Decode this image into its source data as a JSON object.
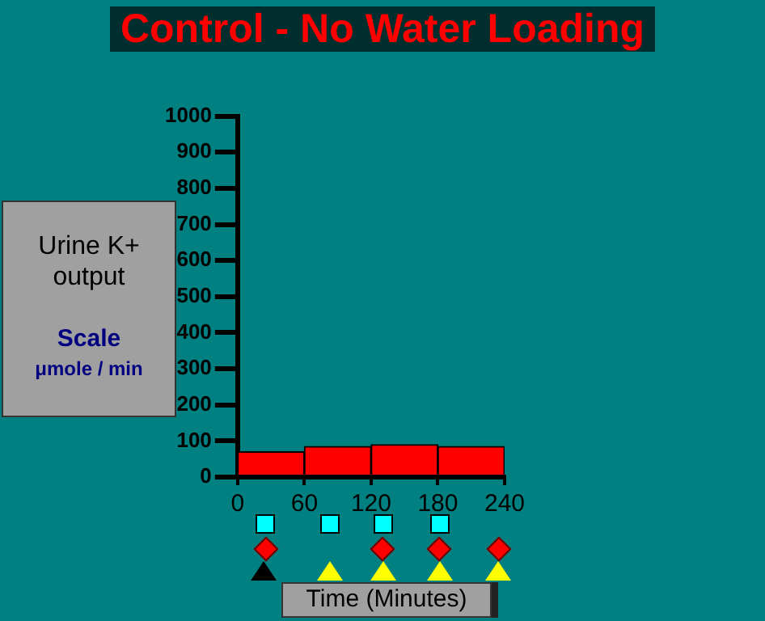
{
  "chart_data": {
    "type": "histogram",
    "title": "Control - No Water Loading",
    "xlabel": "Time (Minutes)",
    "ylabel": "Urine K+ output",
    "annotations": [
      "Scale",
      "μmole / min"
    ],
    "bins": [
      0,
      60,
      120,
      180,
      240
    ],
    "values": [
      70,
      85,
      90,
      85
    ],
    "color": "#ff0000",
    "xlim": [
      0,
      240
    ],
    "xticks": [
      0,
      60,
      120,
      180,
      240
    ],
    "ylim": [
      0,
      1000
    ],
    "yticks": [
      0,
      100,
      200,
      300,
      400,
      500,
      600,
      700,
      800,
      900,
      1000
    ],
    "grid": false
  }
}
